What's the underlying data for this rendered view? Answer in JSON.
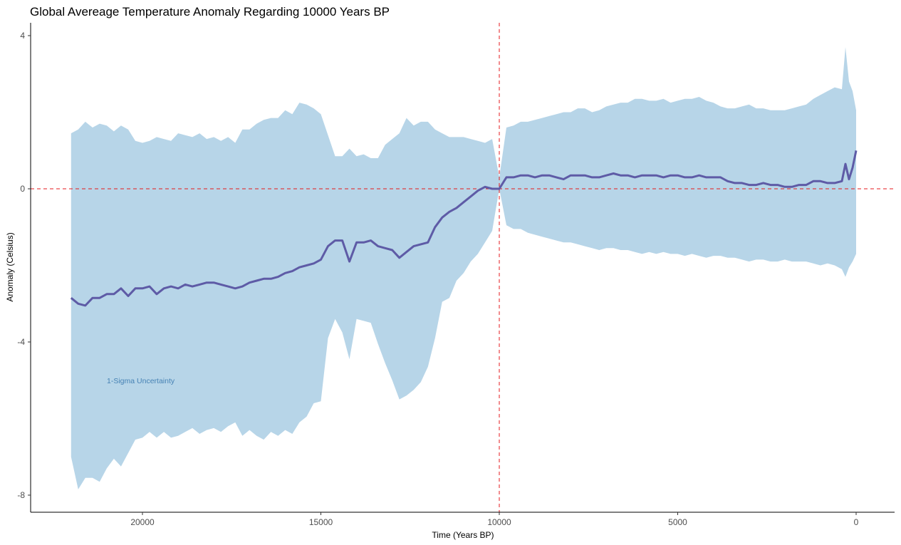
{
  "chart_data": {
    "type": "line",
    "title": "Global Avereage Temperature Anomaly Regarding 10000 Years BP",
    "xlabel": "Time (Years BP)",
    "ylabel": "Anomaly (Celsius)",
    "x_reversed": true,
    "xlim": [
      22000,
      0
    ],
    "ylim": [
      -8,
      4
    ],
    "x_ticks": [
      20000,
      15000,
      10000,
      5000,
      0
    ],
    "y_ticks": [
      -8,
      -4,
      0,
      4
    ],
    "grid": false,
    "reference_lines": {
      "vertical_x": 10000,
      "horizontal_y": 0,
      "color": "#e41a1c",
      "style": "dashed"
    },
    "band_label": "1-Sigma Uncertainty",
    "band_color": "#b7d5e8",
    "line_color": "#5e5ba6",
    "label_color": "#4682b4",
    "series": [
      {
        "x": [
          22000,
          21800,
          21600,
          21400,
          21200,
          21000,
          20800,
          20600,
          20400,
          20200,
          20000,
          19800,
          19600,
          19400,
          19200,
          19000,
          18800,
          18600,
          18400,
          18200,
          18000,
          17800,
          17600,
          17400,
          17200,
          17000,
          16800,
          16600,
          16400,
          16200,
          16000,
          15800,
          15600,
          15400,
          15200,
          15000,
          14800,
          14600,
          14400,
          14200,
          14000,
          13800,
          13600,
          13400,
          13200,
          13000,
          12800,
          12600,
          12400,
          12200,
          12000,
          11800,
          11600,
          11400,
          11200,
          11000,
          10800,
          10600,
          10400,
          10200,
          10000,
          9800,
          9600,
          9400,
          9200,
          9000,
          8800,
          8600,
          8400,
          8200,
          8000,
          7800,
          7600,
          7400,
          7200,
          7000,
          6800,
          6600,
          6400,
          6200,
          6000,
          5800,
          5600,
          5400,
          5200,
          5000,
          4800,
          4600,
          4400,
          4200,
          4000,
          3800,
          3600,
          3400,
          3200,
          3000,
          2800,
          2600,
          2400,
          2200,
          2000,
          1800,
          1600,
          1400,
          1200,
          1000,
          800,
          600,
          400,
          300,
          200,
          100,
          0
        ],
        "y": [
          -2.85,
          -3.0,
          -3.05,
          -2.85,
          -2.85,
          -2.75,
          -2.75,
          -2.6,
          -2.8,
          -2.6,
          -2.6,
          -2.55,
          -2.75,
          -2.6,
          -2.55,
          -2.6,
          -2.5,
          -2.55,
          -2.5,
          -2.45,
          -2.45,
          -2.5,
          -2.55,
          -2.6,
          -2.55,
          -2.45,
          -2.4,
          -2.35,
          -2.35,
          -2.3,
          -2.2,
          -2.15,
          -2.05,
          -2.0,
          -1.95,
          -1.85,
          -1.5,
          -1.35,
          -1.35,
          -1.9,
          -1.4,
          -1.4,
          -1.35,
          -1.5,
          -1.55,
          -1.6,
          -1.8,
          -1.65,
          -1.5,
          -1.45,
          -1.4,
          -1.0,
          -0.75,
          -0.6,
          -0.5,
          -0.35,
          -0.2,
          -0.05,
          0.05,
          0.0,
          0.0,
          0.3,
          0.3,
          0.35,
          0.35,
          0.3,
          0.35,
          0.35,
          0.3,
          0.25,
          0.35,
          0.35,
          0.35,
          0.3,
          0.3,
          0.35,
          0.4,
          0.35,
          0.35,
          0.3,
          0.35,
          0.35,
          0.35,
          0.3,
          0.35,
          0.35,
          0.3,
          0.3,
          0.35,
          0.3,
          0.3,
          0.3,
          0.2,
          0.15,
          0.15,
          0.1,
          0.1,
          0.15,
          0.1,
          0.1,
          0.05,
          0.05,
          0.1,
          0.1,
          0.2,
          0.2,
          0.15,
          0.15,
          0.2,
          0.65,
          0.25,
          0.55,
          1.0
        ]
      }
    ],
    "band": {
      "upper": [
        1.45,
        1.55,
        1.75,
        1.6,
        1.7,
        1.65,
        1.5,
        1.65,
        1.55,
        1.25,
        1.2,
        1.25,
        1.35,
        1.3,
        1.25,
        1.45,
        1.4,
        1.35,
        1.45,
        1.3,
        1.35,
        1.25,
        1.35,
        1.2,
        1.55,
        1.55,
        1.7,
        1.8,
        1.85,
        1.85,
        2.05,
        1.95,
        2.25,
        2.2,
        2.1,
        1.95,
        1.4,
        0.85,
        0.85,
        1.05,
        0.85,
        0.9,
        0.8,
        0.8,
        1.15,
        1.3,
        1.45,
        1.85,
        1.65,
        1.75,
        1.75,
        1.55,
        1.45,
        1.35,
        1.35,
        1.35,
        1.3,
        1.25,
        1.2,
        1.3,
        0.3,
        1.6,
        1.65,
        1.75,
        1.75,
        1.8,
        1.85,
        1.9,
        1.95,
        2.0,
        2.0,
        2.1,
        2.1,
        2.0,
        2.05,
        2.15,
        2.2,
        2.25,
        2.25,
        2.35,
        2.35,
        2.3,
        2.3,
        2.35,
        2.25,
        2.3,
        2.35,
        2.35,
        2.4,
        2.3,
        2.25,
        2.15,
        2.1,
        2.1,
        2.15,
        2.2,
        2.1,
        2.1,
        2.05,
        2.05,
        2.05,
        2.1,
        2.15,
        2.2,
        2.35,
        2.45,
        2.55,
        2.65,
        2.6,
        3.7,
        2.8,
        2.55,
        2.05
      ],
      "lower": [
        -7.0,
        -7.85,
        -7.55,
        -7.55,
        -7.65,
        -7.3,
        -7.05,
        -7.25,
        -6.9,
        -6.55,
        -6.5,
        -6.35,
        -6.5,
        -6.35,
        -6.5,
        -6.45,
        -6.35,
        -6.25,
        -6.4,
        -6.3,
        -6.25,
        -6.35,
        -6.2,
        -6.1,
        -6.45,
        -6.3,
        -6.45,
        -6.55,
        -6.35,
        -6.45,
        -6.3,
        -6.4,
        -6.1,
        -5.95,
        -5.6,
        -5.55,
        -3.9,
        -3.4,
        -3.75,
        -4.45,
        -3.4,
        -3.45,
        -3.5,
        -4.05,
        -4.55,
        -5.0,
        -5.5,
        -5.4,
        -5.25,
        -5.05,
        -4.65,
        -3.9,
        -2.95,
        -2.85,
        -2.4,
        -2.2,
        -1.9,
        -1.7,
        -1.4,
        -1.1,
        0.0,
        -0.95,
        -1.05,
        -1.05,
        -1.15,
        -1.2,
        -1.25,
        -1.3,
        -1.35,
        -1.4,
        -1.4,
        -1.45,
        -1.5,
        -1.55,
        -1.6,
        -1.55,
        -1.55,
        -1.6,
        -1.6,
        -1.65,
        -1.7,
        -1.65,
        -1.7,
        -1.65,
        -1.7,
        -1.7,
        -1.75,
        -1.7,
        -1.75,
        -1.8,
        -1.75,
        -1.75,
        -1.8,
        -1.8,
        -1.85,
        -1.9,
        -1.85,
        -1.85,
        -1.9,
        -1.9,
        -1.85,
        -1.9,
        -1.9,
        -1.9,
        -1.95,
        -2.0,
        -1.95,
        -2.0,
        -2.1,
        -2.3,
        -2.05,
        -1.9,
        -1.7
      ]
    }
  }
}
